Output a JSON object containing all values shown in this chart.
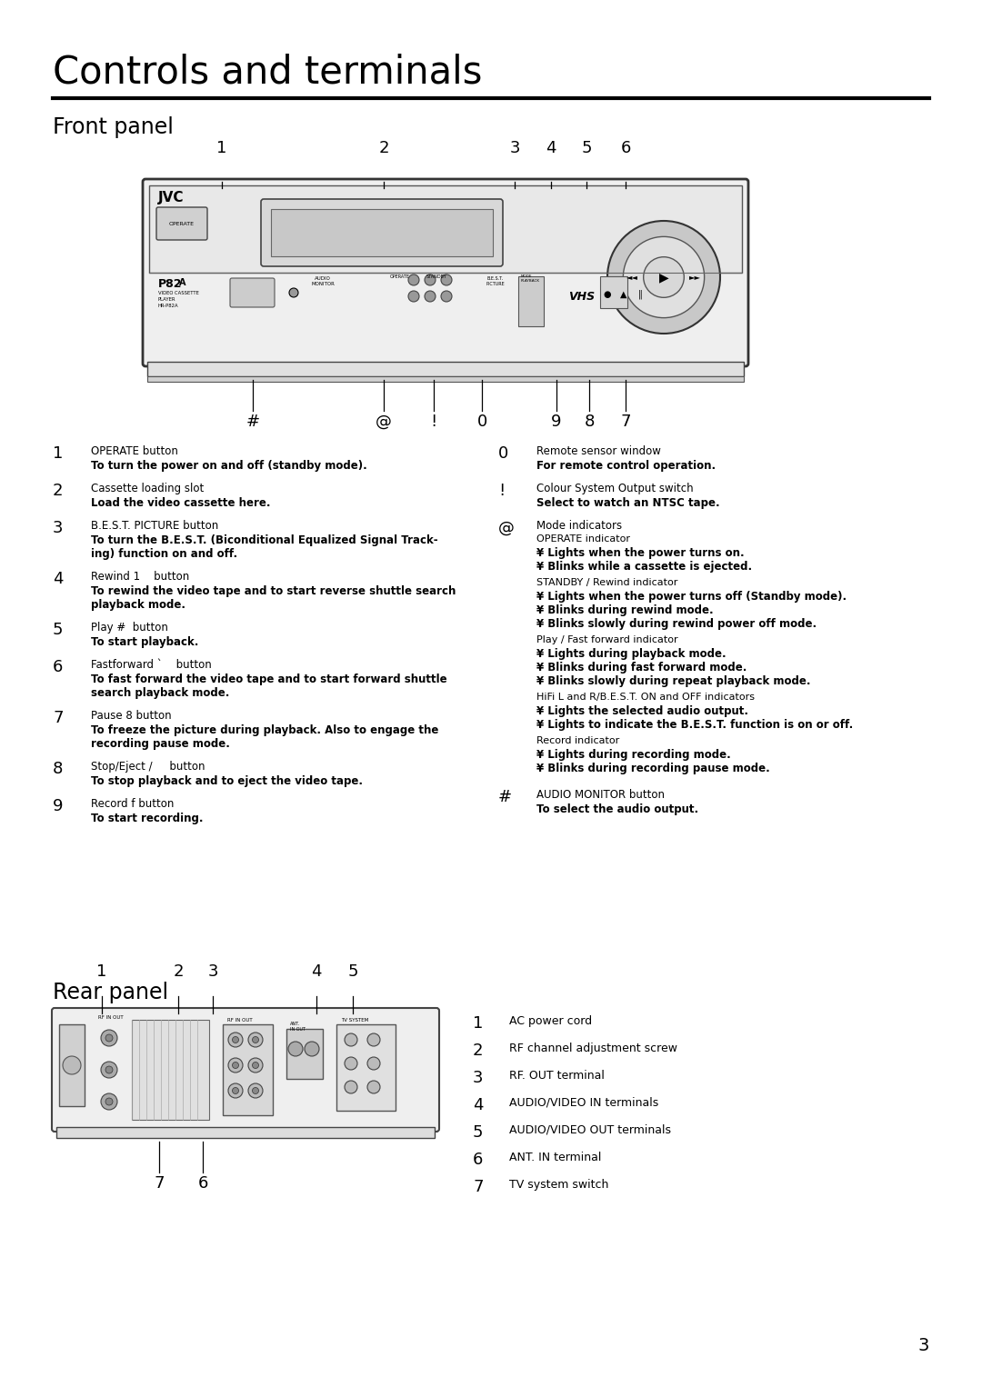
{
  "title": "Controls and terminals",
  "section1": "Front panel",
  "section2": "Rear panel",
  "bg_color": "#ffffff",
  "text_color": "#000000",
  "page_number": "3",
  "front_desc_left": [
    {
      "num": "1",
      "title": "OPERATE button",
      "bold": "To turn the power on and off (standby mode)."
    },
    {
      "num": "2",
      "title": "Cassette loading slot",
      "bold": "Load the video cassette here."
    },
    {
      "num": "3",
      "title": "B.E.S.T. PICTURE button",
      "bold": "To turn the B.E.S.T. (Biconditional Equalized Signal Track-\ning) function on and off."
    },
    {
      "num": "4",
      "title": "Rewind 1    button",
      "bold": "To rewind the video tape and to start reverse shuttle search\nplayback mode."
    },
    {
      "num": "5",
      "title": "Play #  button",
      "bold": "To start playback."
    },
    {
      "num": "6",
      "title": "Fastforward `    button",
      "bold": "To fast forward the video tape and to start forward shuttle\nsearch playback mode."
    },
    {
      "num": "7",
      "title": "Pause 8 button",
      "bold": "To freeze the picture during playback. Also to engage the\nrecording pause mode."
    },
    {
      "num": "8",
      "title": "Stop/Eject /     button",
      "bold": "To stop playback and to eject the video tape."
    },
    {
      "num": "9",
      "title": "Record f button",
      "bold": "To start recording."
    }
  ],
  "front_desc_right_simple": [
    {
      "num": "0",
      "title": "Remote sensor window",
      "bold": "For remote control operation."
    },
    {
      "num": "!",
      "title": "Colour System Output switch",
      "bold": "Select to watch an NTSC tape."
    }
  ],
  "mode_indicators_title": "@ Mode indicators",
  "mode_indicator_at": "@",
  "mode_subsections": [
    {
      "subtitle": "OPERATE indicator",
      "items": [
        "Lights when the power turns on.",
        "Blinks while a cassette is ejected."
      ]
    },
    {
      "subtitle": "STANDBY / Rewind indicator",
      "items": [
        "Lights when the power turns off (Standby mode).",
        "Blinks during rewind mode.",
        "Blinks slowly during rewind power off mode."
      ]
    },
    {
      "subtitle": "Play / Fast forward indicator",
      "items": [
        "Lights during playback mode.",
        "Blinks during fast forward mode.",
        "Blinks slowly during repeat playback mode."
      ]
    },
    {
      "subtitle": "HiFi L and R/B.E.S.T. ON and OFF indicators",
      "items": [
        "Lights the selected audio output.",
        "Lights to indicate the B.E.S.T. function is on or off."
      ]
    },
    {
      "subtitle": "Record indicator",
      "items": [
        "Lights during recording mode.",
        "Blinks during recording pause mode."
      ]
    }
  ],
  "audio_monitor_num": "#",
  "audio_monitor_title": "AUDIO MONITOR button",
  "audio_monitor_bold": "To select the audio output.",
  "rear_desc_right": [
    {
      "num": "1",
      "title": "AC power cord"
    },
    {
      "num": "2",
      "title": "RF channel adjustment screw"
    },
    {
      "num": "3",
      "title": "RF. OUT terminal"
    },
    {
      "num": "4",
      "title": "AUDIO/VIDEO IN terminals"
    },
    {
      "num": "5",
      "title": "AUDIO/VIDEO OUT terminals"
    },
    {
      "num": "6",
      "title": "ANT. IN terminal"
    },
    {
      "num": "7",
      "title": "TV system switch"
    }
  ]
}
